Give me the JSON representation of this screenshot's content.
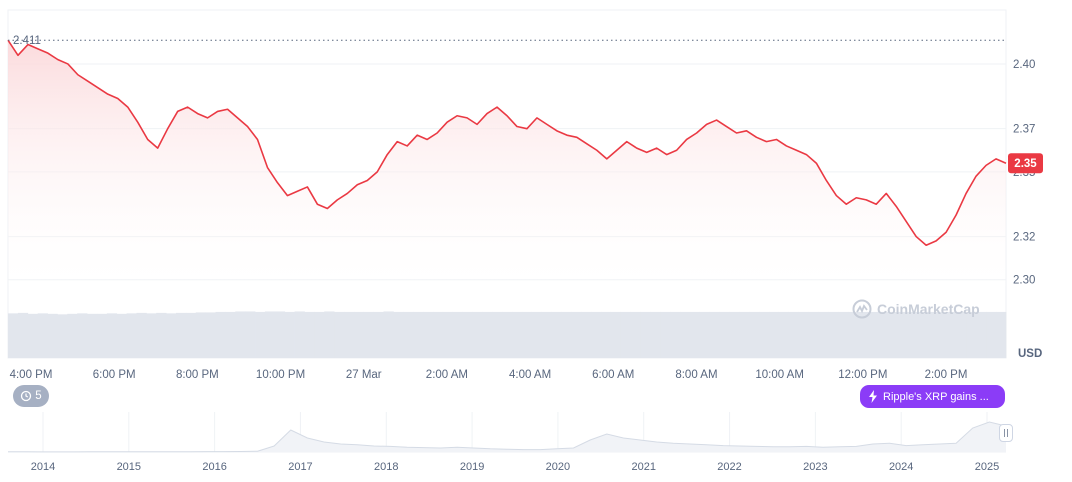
{
  "chart_data": {
    "type": "area",
    "currency_label": "USD",
    "start_price_label": "2.411",
    "current_price_label": "2.35",
    "ylim": [
      2.292,
      2.425
    ],
    "yticks": [
      {
        "value": 2.3,
        "label": "2.30"
      },
      {
        "value": 2.32,
        "label": "2.32"
      },
      {
        "value": 2.35,
        "label": "2.35"
      },
      {
        "value": 2.37,
        "label": "2.37"
      },
      {
        "value": 2.4,
        "label": "2.40"
      }
    ],
    "time_labels": [
      "4:00 PM",
      "6:00 PM",
      "8:00 PM",
      "10:00 PM",
      "27 Mar",
      "2:00 AM",
      "4:00 AM",
      "6:00 AM",
      "8:00 AM",
      "10:00 AM",
      "12:00 PM",
      "2:00 PM"
    ],
    "series": [
      {
        "values": [
          2.411,
          2.404,
          2.409,
          2.407,
          2.405,
          2.402,
          2.4,
          2.395,
          2.392,
          2.389,
          2.386,
          2.384,
          2.38,
          2.373,
          2.365,
          2.361,
          2.37,
          2.378,
          2.38,
          2.377,
          2.375,
          2.378,
          2.379,
          2.375,
          2.371,
          2.365,
          2.352,
          2.345,
          2.339,
          2.341,
          2.343,
          2.335,
          2.333,
          2.337,
          2.34,
          2.344,
          2.346,
          2.35,
          2.358,
          2.364,
          2.362,
          2.367,
          2.365,
          2.368,
          2.373,
          2.376,
          2.375,
          2.372,
          2.377,
          2.38,
          2.376,
          2.371,
          2.37,
          2.375,
          2.372,
          2.369,
          2.367,
          2.366,
          2.363,
          2.36,
          2.356,
          2.36,
          2.364,
          2.361,
          2.359,
          2.361,
          2.358,
          2.36,
          2.365,
          2.368,
          2.372,
          2.374,
          2.371,
          2.368,
          2.369,
          2.366,
          2.364,
          2.365,
          2.362,
          2.36,
          2.358,
          2.354,
          2.346,
          2.339,
          2.335,
          2.338,
          2.337,
          2.335,
          2.34,
          2.334,
          2.327,
          2.32,
          2.316,
          2.318,
          2.322,
          2.33,
          2.34,
          2.348,
          2.353,
          2.356,
          2.354
        ],
        "volume": [
          0.93,
          0.94,
          0.92,
          0.93,
          0.92,
          0.91,
          0.92,
          0.93,
          0.92,
          0.92,
          0.93,
          0.92,
          0.93,
          0.94,
          0.93,
          0.94,
          0.93,
          0.94,
          0.94,
          0.95,
          0.95,
          0.96,
          0.96,
          0.97,
          0.97,
          0.96,
          0.97,
          0.97,
          0.96,
          0.97,
          0.96,
          0.96,
          0.97,
          0.96,
          0.96,
          0.96,
          0.96,
          0.96,
          0.97,
          0.96,
          0.96,
          0.96,
          0.96,
          0.96,
          0.96,
          0.96,
          0.96,
          0.96,
          0.96,
          0.96,
          0.96,
          0.96,
          0.96,
          0.96,
          0.96,
          0.96,
          0.96,
          0.96,
          0.96,
          0.96,
          0.96,
          0.96,
          0.96,
          0.96,
          0.96,
          0.96,
          0.96,
          0.96,
          0.96,
          0.96,
          0.96,
          0.96,
          0.96,
          0.96,
          0.96,
          0.96,
          0.96,
          0.96,
          0.96,
          0.96,
          0.96,
          0.96,
          0.96,
          0.96,
          0.96,
          0.96,
          0.96,
          0.96,
          0.96,
          0.96,
          0.96,
          0.96,
          0.96,
          0.96,
          0.96,
          0.96,
          0.96,
          0.96,
          0.96,
          0.96,
          0.96
        ]
      }
    ],
    "overview": {
      "year_labels": [
        "2014",
        "2015",
        "2016",
        "2017",
        "2018",
        "2019",
        "2020",
        "2021",
        "2022",
        "2023",
        "2024",
        "2025"
      ],
      "values": [
        0.005,
        0.005,
        0.004,
        0.004,
        0.004,
        0.005,
        0.005,
        0.006,
        0.005,
        0.005,
        0.005,
        0.006,
        0.008,
        0.01,
        0.012,
        0.02,
        0.15,
        0.55,
        0.35,
        0.25,
        0.2,
        0.18,
        0.15,
        0.14,
        0.12,
        0.11,
        0.1,
        0.12,
        0.1,
        0.08,
        0.07,
        0.06,
        0.06,
        0.08,
        0.1,
        0.3,
        0.45,
        0.35,
        0.3,
        0.25,
        0.22,
        0.2,
        0.18,
        0.16,
        0.15,
        0.14,
        0.13,
        0.13,
        0.14,
        0.12,
        0.13,
        0.14,
        0.2,
        0.22,
        0.16,
        0.18,
        0.2,
        0.22,
        0.6,
        0.75,
        0.65
      ]
    },
    "colors": {
      "line": "#ea3943",
      "fill_top": "#fbd9db",
      "grid": "#eff2f5",
      "volume": "#e2e6ed",
      "badge": "#ea3943",
      "overview_line": "#d5dbe5"
    }
  },
  "ui": {
    "history_count": "5",
    "news_text": "Ripple's XRP gains ...",
    "watermark": "CoinMarketCap"
  }
}
